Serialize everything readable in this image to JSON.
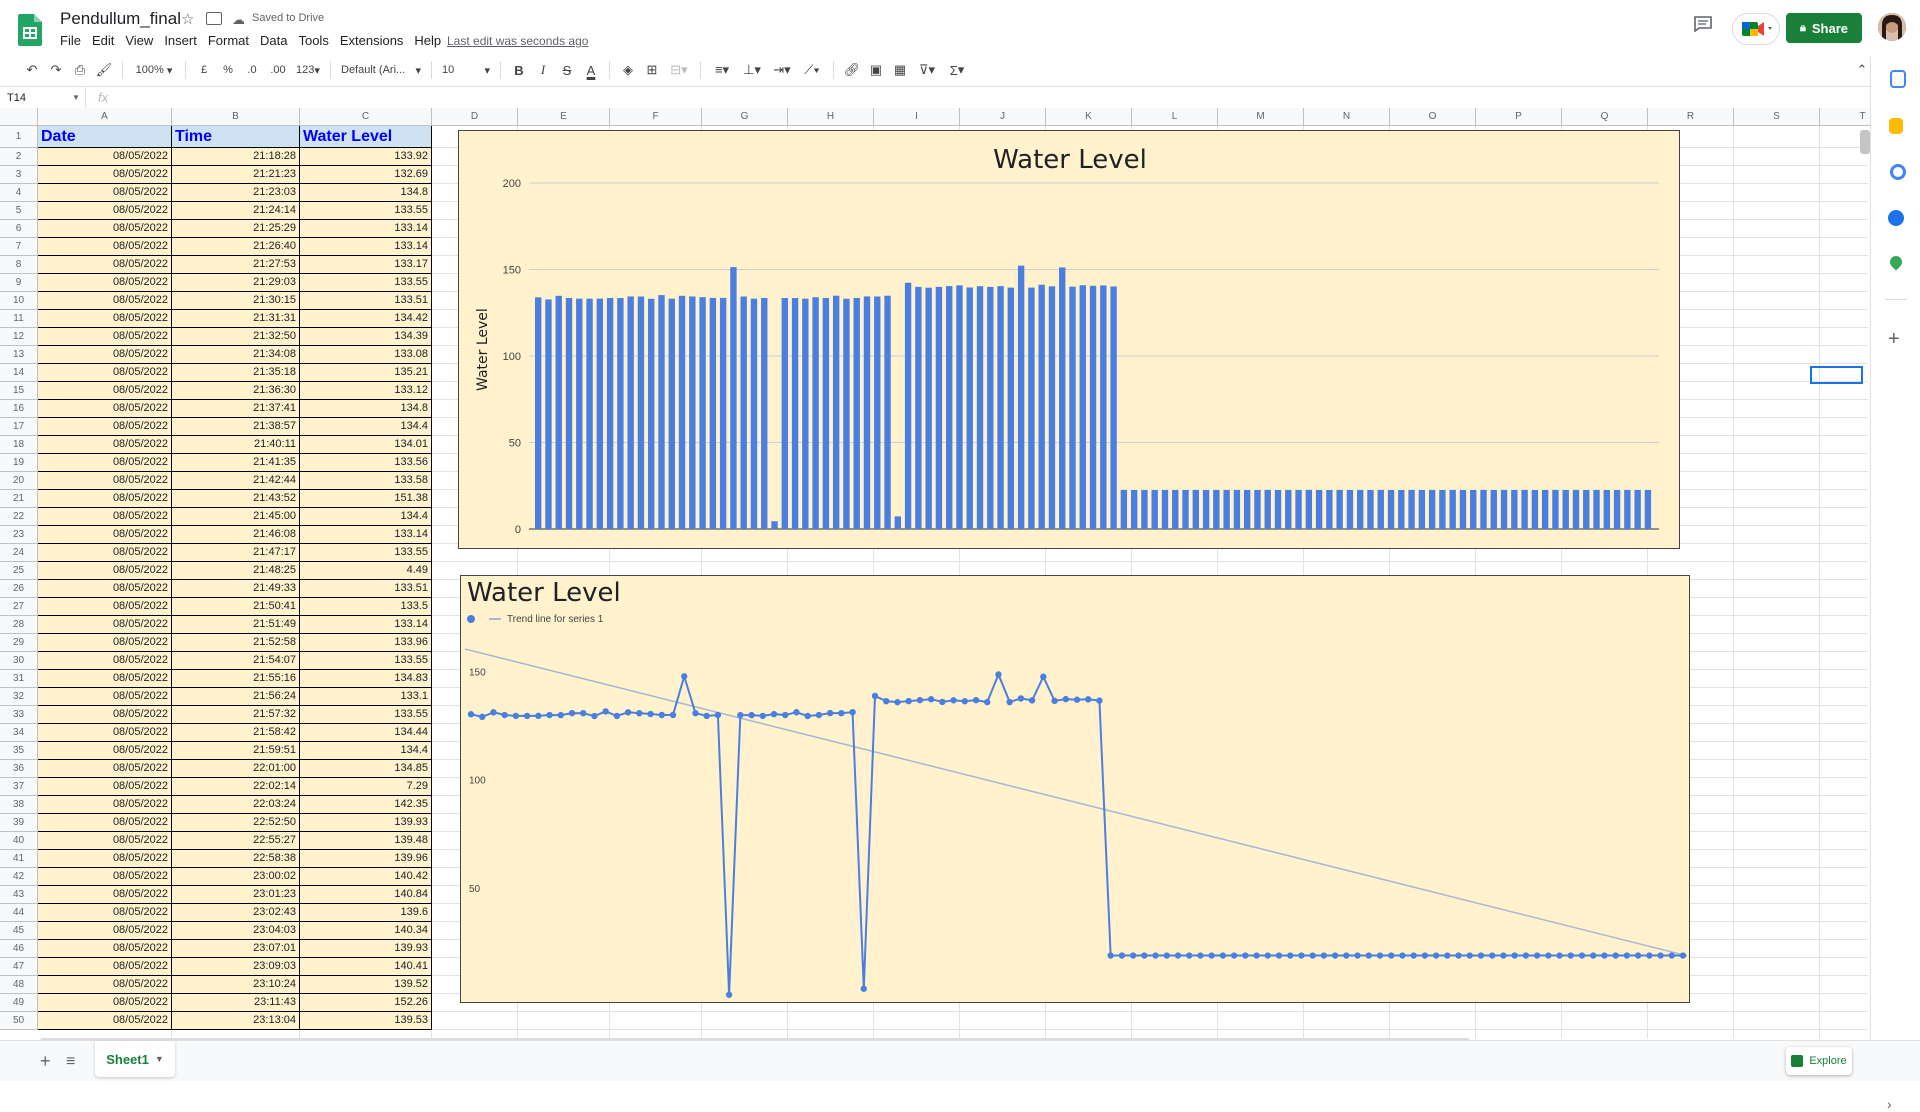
{
  "app": {
    "title": "Pendullum_final",
    "saved_status": "Saved to Drive",
    "last_edit": "Last edit was seconds ago",
    "share_label": "Share",
    "menu": [
      "File",
      "Edit",
      "View",
      "Insert",
      "Format",
      "Data",
      "Tools",
      "Extensions",
      "Help"
    ]
  },
  "toolbar": {
    "zoom": "100%",
    "currency": "£",
    "percent": "%",
    "dec_decrease": ".0",
    "dec_increase": ".00",
    "more_formats": "123",
    "font": "Default (Ari...",
    "font_size": "10",
    "bold": "B",
    "italic": "I",
    "strike": "S",
    "text_color": "A",
    "sum": "Σ"
  },
  "formula_bar": {
    "name_box": "T14",
    "fx": "fx"
  },
  "columns": [
    "A",
    "B",
    "C",
    "D",
    "E",
    "F",
    "G",
    "H",
    "I",
    "J",
    "K",
    "L",
    "M",
    "N",
    "O",
    "P",
    "Q",
    "R",
    "S",
    "T"
  ],
  "headers": {
    "date": "Date",
    "time": "Time",
    "level": "Water Level"
  },
  "rows": [
    [
      "08/05/2022",
      "21:18:28",
      "133.92"
    ],
    [
      "08/05/2022",
      "21:21:23",
      "132.69"
    ],
    [
      "08/05/2022",
      "21:23:03",
      "134.8"
    ],
    [
      "08/05/2022",
      "21:24:14",
      "133.55"
    ],
    [
      "08/05/2022",
      "21:25:29",
      "133.14"
    ],
    [
      "08/05/2022",
      "21:26:40",
      "133.14"
    ],
    [
      "08/05/2022",
      "21:27:53",
      "133.17"
    ],
    [
      "08/05/2022",
      "21:29:03",
      "133.55"
    ],
    [
      "08/05/2022",
      "21:30:15",
      "133.51"
    ],
    [
      "08/05/2022",
      "21:31:31",
      "134.42"
    ],
    [
      "08/05/2022",
      "21:32:50",
      "134.39"
    ],
    [
      "08/05/2022",
      "21:34:08",
      "133.08"
    ],
    [
      "08/05/2022",
      "21:35:18",
      "135.21"
    ],
    [
      "08/05/2022",
      "21:36:30",
      "133.12"
    ],
    [
      "08/05/2022",
      "21:37:41",
      "134.8"
    ],
    [
      "08/05/2022",
      "21:38:57",
      "134.4"
    ],
    [
      "08/05/2022",
      "21:40:11",
      "134.01"
    ],
    [
      "08/05/2022",
      "21:41:35",
      "133.56"
    ],
    [
      "08/05/2022",
      "21:42:44",
      "133.58"
    ],
    [
      "08/05/2022",
      "21:43:52",
      "151.38"
    ],
    [
      "08/05/2022",
      "21:45:00",
      "134.4"
    ],
    [
      "08/05/2022",
      "21:46:08",
      "133.14"
    ],
    [
      "08/05/2022",
      "21:47:17",
      "133.55"
    ],
    [
      "08/05/2022",
      "21:48:25",
      "4.49"
    ],
    [
      "08/05/2022",
      "21:49:33",
      "133.51"
    ],
    [
      "08/05/2022",
      "21:50:41",
      "133.5"
    ],
    [
      "08/05/2022",
      "21:51:49",
      "133.14"
    ],
    [
      "08/05/2022",
      "21:52:58",
      "133.96"
    ],
    [
      "08/05/2022",
      "21:54:07",
      "133.55"
    ],
    [
      "08/05/2022",
      "21:55:16",
      "134.83"
    ],
    [
      "08/05/2022",
      "21:56:24",
      "133.1"
    ],
    [
      "08/05/2022",
      "21:57:32",
      "133.55"
    ],
    [
      "08/05/2022",
      "21:58:42",
      "134.44"
    ],
    [
      "08/05/2022",
      "21:59:51",
      "134.4"
    ],
    [
      "08/05/2022",
      "22:01:00",
      "134.85"
    ],
    [
      "08/05/2022",
      "22:02:14",
      "7.29"
    ],
    [
      "08/05/2022",
      "22:03:24",
      "142.35"
    ],
    [
      "08/05/2022",
      "22:52:50",
      "139.93"
    ],
    [
      "08/05/2022",
      "22:55:27",
      "139.48"
    ],
    [
      "08/05/2022",
      "22:58:38",
      "139.96"
    ],
    [
      "08/05/2022",
      "23:00:02",
      "140.42"
    ],
    [
      "08/05/2022",
      "23:01:23",
      "140.84"
    ],
    [
      "08/05/2022",
      "23:02:43",
      "139.6"
    ],
    [
      "08/05/2022",
      "23:04:03",
      "140.34"
    ],
    [
      "08/05/2022",
      "23:07:01",
      "139.93"
    ],
    [
      "08/05/2022",
      "23:09:03",
      "140.41"
    ],
    [
      "08/05/2022",
      "23:10:24",
      "139.52"
    ],
    [
      "08/05/2022",
      "23:11:43",
      "152.26"
    ],
    [
      "08/05/2022",
      "23:13:04",
      "139.53"
    ]
  ],
  "chart_data": [
    {
      "type": "bar",
      "title": "Water Level",
      "ylabel": "Water Level",
      "ylim": [
        0,
        200
      ],
      "yticks": [
        "0",
        "50",
        "100",
        "150",
        "200"
      ],
      "grid": true,
      "color": "#4a7fe0",
      "values": [
        133.92,
        132.69,
        134.8,
        133.55,
        133.14,
        133.14,
        133.17,
        133.55,
        133.51,
        134.42,
        134.39,
        133.08,
        135.21,
        133.12,
        134.8,
        134.4,
        134.01,
        133.56,
        133.58,
        151.38,
        134.4,
        133.14,
        133.55,
        4.49,
        133.51,
        133.5,
        133.14,
        133.96,
        133.55,
        134.83,
        133.1,
        133.55,
        134.44,
        134.4,
        134.85,
        7.29,
        142.35,
        139.93,
        139.48,
        139.96,
        140.42,
        140.84,
        139.6,
        140.34,
        139.93,
        140.41,
        139.52,
        152.26,
        139.53,
        141.2,
        140.3,
        151.2,
        140.1,
        140.9,
        140.6,
        140.8,
        140.2,
        22.6,
        22.6,
        22.6,
        22.6,
        22.6,
        22.6,
        22.6,
        22.6,
        22.6,
        22.6,
        22.6,
        22.6,
        22.6,
        22.6,
        22.6,
        22.6,
        22.6,
        22.6,
        22.6,
        22.6,
        22.6,
        22.6,
        22.6,
        22.6,
        22.6,
        22.6,
        22.6,
        22.6,
        22.6,
        22.6,
        22.6,
        22.6,
        22.6,
        22.6,
        22.6,
        22.6,
        22.6,
        22.6,
        22.6,
        22.6,
        22.6,
        22.6,
        22.6,
        22.6,
        22.6,
        22.6,
        22.6,
        22.6,
        22.6,
        22.6,
        22.6,
        22.6
      ]
    },
    {
      "type": "line",
      "title": "Water Level",
      "legend": [
        "",
        "Trend line for series 1"
      ],
      "legend_position": "top-left",
      "yticks": [
        "50",
        "100",
        "150"
      ],
      "ylim": [
        27,
        170
      ],
      "color": "#4a7fe0",
      "trend_color": "#aab8d6",
      "trend": [
        164,
        22.5
      ]
    }
  ],
  "sheet_tab": "Sheet1",
  "explore_label": "Explore"
}
